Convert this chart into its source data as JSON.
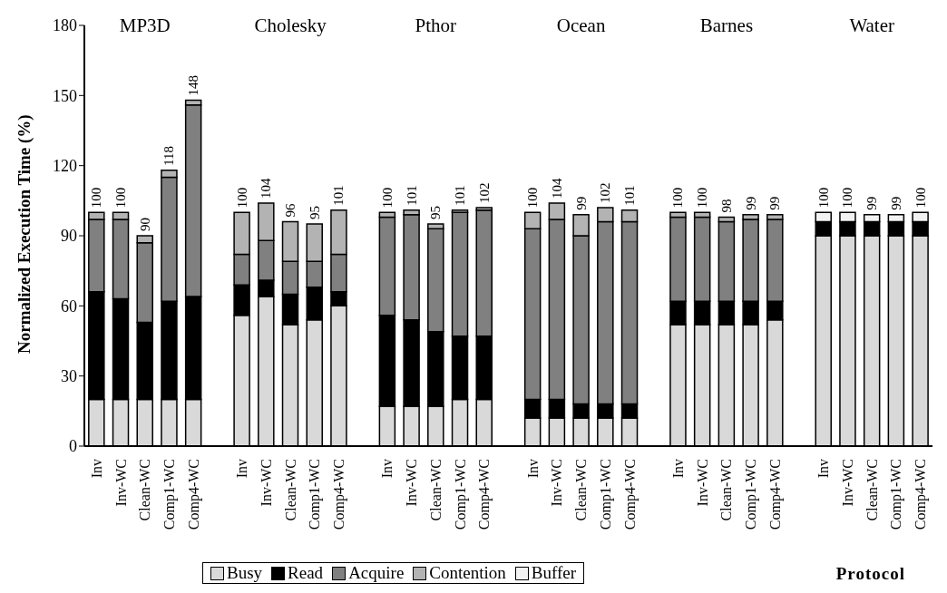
{
  "chart_data": {
    "type": "bar",
    "stacked": true,
    "xlabel": "Protocol",
    "ylabel": "Normalized Execution Time (%)",
    "categories": [
      "Inv",
      "Inv-WC",
      "Clean-WC",
      "Comp1-WC",
      "Comp4-WC",
      null,
      "Inv",
      "Inv-WC",
      "Clean-WC",
      "Comp1-WC",
      "Comp4-WC",
      null,
      "Inv",
      "Inv-WC",
      "Clean-WC",
      "Comp1-WC",
      "Comp4-WC",
      null,
      "Inv",
      "Inv-WC",
      "Clean-WC",
      "Comp1-WC",
      "Comp4-WC",
      null,
      "Inv",
      "Inv-WC",
      "Clean-WC",
      "Comp1-WC",
      "Comp4-WC",
      null,
      "Inv",
      "Inv-WC",
      "Clean-WC",
      "Comp1-WC",
      "Comp4-WC"
    ],
    "series": [
      {
        "name": "Busy",
        "color": "#d9d9d9",
        "values": [
          20,
          20,
          20,
          20,
          20,
          null,
          56,
          64,
          52,
          54,
          60,
          null,
          17,
          17,
          17,
          20,
          20,
          null,
          12,
          12,
          12,
          12,
          12,
          null,
          52,
          52,
          52,
          52,
          54,
          null,
          90,
          90,
          90,
          90,
          90
        ]
      },
      {
        "name": "Read",
        "color": "#000000",
        "values": [
          46,
          43,
          33,
          42,
          44,
          null,
          13,
          7,
          13,
          14,
          6,
          null,
          39,
          37,
          32,
          27,
          27,
          null,
          8,
          8,
          6,
          6,
          6,
          null,
          10,
          10,
          10,
          10,
          8,
          null,
          6,
          6,
          6,
          6,
          6
        ]
      },
      {
        "name": "Acquire",
        "color": "#808080",
        "values": [
          31,
          34,
          34,
          53,
          82,
          null,
          13,
          17,
          14,
          11,
          16,
          null,
          42,
          45,
          44,
          53,
          54,
          null,
          73,
          77,
          72,
          78,
          78,
          null,
          36,
          36,
          34,
          35,
          35,
          null,
          0,
          0,
          0,
          0,
          0
        ]
      },
      {
        "name": "Contention",
        "color": "#b3b3b3",
        "values": [
          3,
          3,
          3,
          3,
          2,
          null,
          18,
          16,
          17,
          16,
          19,
          null,
          2,
          2,
          2,
          1,
          1,
          null,
          7,
          7,
          9,
          6,
          5,
          null,
          2,
          2,
          2,
          2,
          2,
          null,
          0,
          0,
          0,
          0,
          0
        ]
      },
      {
        "name": "Buffer",
        "color": "#f2f2f2",
        "values": [
          0,
          0,
          0,
          0,
          0,
          null,
          0,
          0,
          0,
          0,
          0,
          null,
          0,
          0,
          0,
          0,
          0,
          null,
          0,
          0,
          0,
          0,
          0,
          null,
          0,
          0,
          0,
          0,
          0,
          null,
          4,
          4,
          3,
          3,
          4
        ]
      }
    ],
    "totals": [
      "100",
      "100",
      "90",
      "118",
      "148",
      null,
      "100",
      "104",
      "96",
      "95",
      "101",
      null,
      "100",
      "101",
      "95",
      "101",
      "102",
      null,
      "100",
      "104",
      "99",
      "102",
      "101",
      null,
      "100",
      "100",
      "98",
      "99",
      "99",
      null,
      "100",
      "100",
      "99",
      "99",
      "100"
    ],
    "annotations": [
      "MP3D",
      "Cholesky",
      "Pthor",
      "Ocean",
      "Barnes",
      "Water"
    ],
    "ylim": [
      0,
      180
    ],
    "yticks": [
      0,
      30,
      60,
      90,
      120,
      150,
      180
    ],
    "grid": false,
    "legend": "bottom"
  }
}
